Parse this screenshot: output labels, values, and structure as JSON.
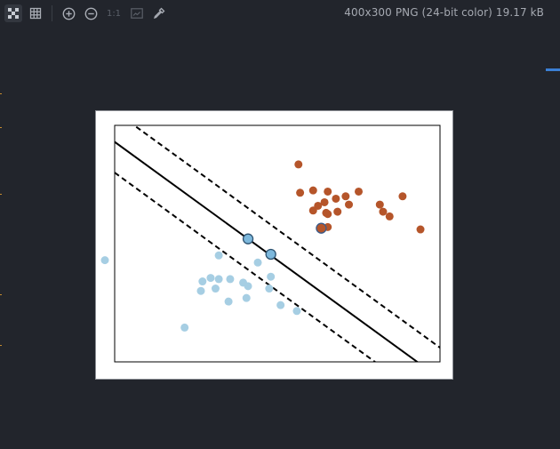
{
  "toolbar": {
    "tools": [
      {
        "name": "checker-icon",
        "active": true
      },
      {
        "name": "grid-icon"
      },
      {
        "name": "zoom-in-icon"
      },
      {
        "name": "zoom-out-icon"
      },
      {
        "name": "actual-size",
        "label": "1:1"
      },
      {
        "name": "fit-icon"
      },
      {
        "name": "eyedropper-icon"
      }
    ],
    "actual_size_label": "1:1",
    "file_info": "400x300 PNG (24-bit color) 19.17 kB"
  },
  "colors": {
    "background": "#22252c",
    "class_a": "#b5552a",
    "class_b": "#a6cee3",
    "support_vector_b": "#7db8dc",
    "accent": "#3b7fd4"
  },
  "chart_data": {
    "type": "scatter",
    "title": "",
    "xlabel": "",
    "ylabel": "",
    "grid": false,
    "xlim": [
      0,
      100
    ],
    "ylim": [
      0,
      100
    ],
    "series": [
      {
        "values_xy": [
          [
            56.5,
            83.5
          ],
          [
            57,
            71.5
          ],
          [
            61,
            72.5
          ],
          [
            65.5,
            72
          ],
          [
            64.5,
            67.5
          ],
          [
            62.5,
            66
          ],
          [
            61,
            64
          ],
          [
            65,
            63
          ],
          [
            68.5,
            63.5
          ],
          [
            72,
            66.5
          ],
          [
            75,
            72
          ],
          [
            71,
            70
          ],
          [
            68,
            69
          ],
          [
            65.5,
            62.5
          ],
          [
            81.5,
            66.5
          ],
          [
            82.5,
            63.5
          ],
          [
            84.5,
            61.5
          ],
          [
            88.5,
            70
          ],
          [
            94,
            56
          ],
          [
            65.5,
            57
          ]
        ]
      },
      {
        "values_xy": [
          [
            -3,
            43
          ],
          [
            21.5,
            14.5
          ],
          [
            32,
            45
          ],
          [
            27,
            34
          ],
          [
            26.5,
            30
          ],
          [
            29.5,
            35.5
          ],
          [
            32,
            35
          ],
          [
            35.5,
            35
          ],
          [
            39.5,
            33.5
          ],
          [
            31,
            31
          ],
          [
            35,
            25.5
          ],
          [
            41,
            32
          ],
          [
            40.5,
            27
          ],
          [
            44,
            42
          ],
          [
            48,
            36
          ],
          [
            47.5,
            31
          ],
          [
            51,
            24
          ],
          [
            56,
            21.5
          ]
        ]
      }
    ],
    "support_vectors": [
      {
        "series": 0,
        "x": 63.5,
        "y": 56.5
      },
      {
        "series": 1,
        "x": 41,
        "y": 52
      },
      {
        "series": 1,
        "x": 48,
        "y": 45.5
      }
    ],
    "decision_boundary": {
      "slope": -1,
      "intercept": 93,
      "margin": 13
    }
  }
}
